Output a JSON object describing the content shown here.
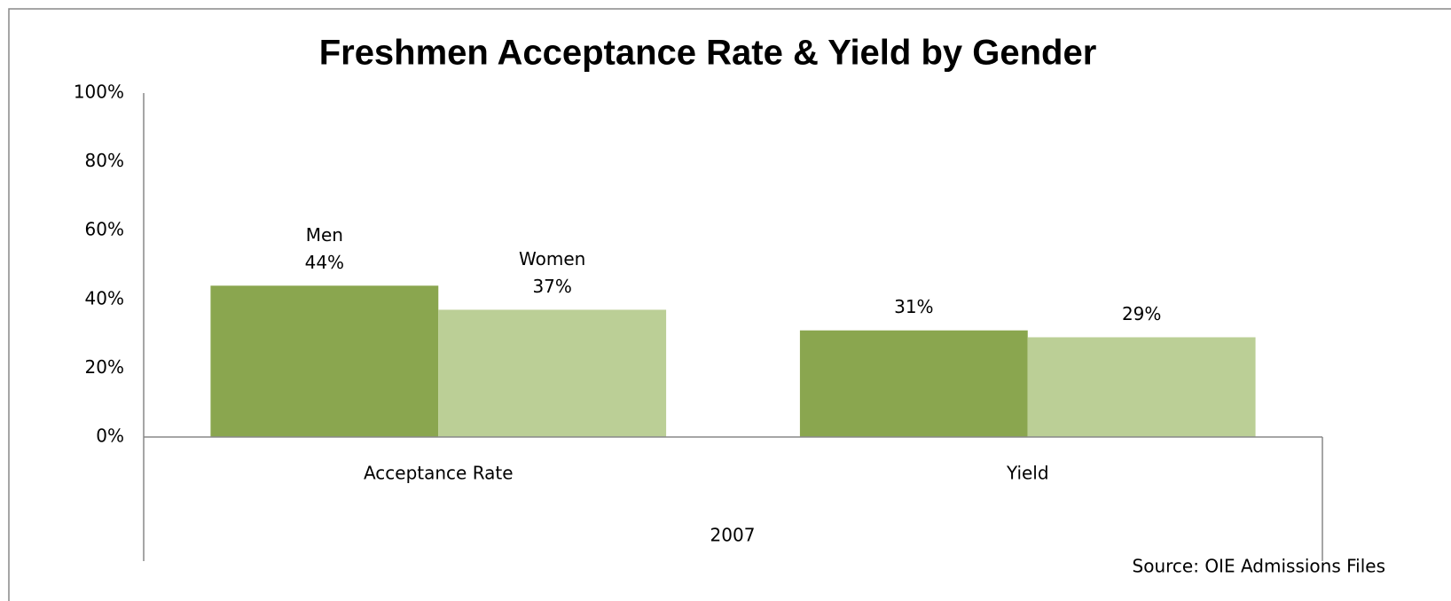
{
  "chart_data": {
    "type": "bar",
    "title": "Freshmen Acceptance Rate & Yield by Gender",
    "categories": [
      "Acceptance Rate",
      "Yield"
    ],
    "group_label": "2007",
    "series": [
      {
        "name": "Men",
        "color": "#8aa64f",
        "values": [
          44,
          31
        ],
        "value_labels": [
          "44%",
          "31%"
        ]
      },
      {
        "name": "Women",
        "color": "#bbcf96",
        "values": [
          37,
          29
        ],
        "value_labels": [
          "37%",
          "29%"
        ]
      }
    ],
    "ylim": [
      0,
      100
    ],
    "yticks": [
      {
        "value": 0,
        "label": "0%"
      },
      {
        "value": 20,
        "label": "20%"
      },
      {
        "value": 40,
        "label": "40%"
      },
      {
        "value": 60,
        "label": "60%"
      },
      {
        "value": 80,
        "label": "80%"
      },
      {
        "value": 100,
        "label": "100%"
      }
    ],
    "grid": false,
    "annotations": [
      "Source: OIE Admissions  Files"
    ]
  }
}
